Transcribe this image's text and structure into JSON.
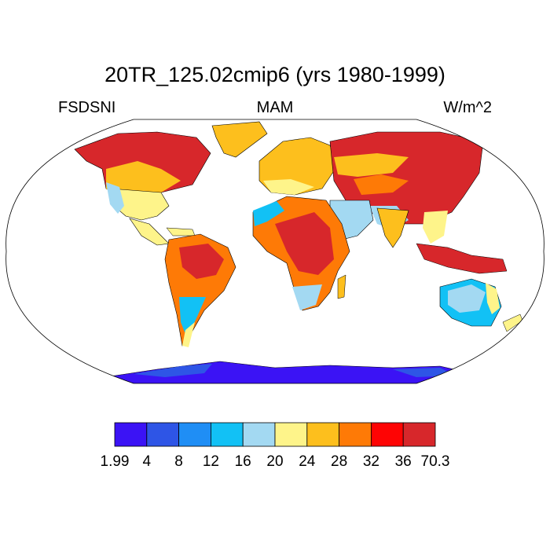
{
  "title": "20TR_125.02cmip6 (yrs 1980-1999)",
  "left_label": "FSDSNI",
  "center_label": "MAM",
  "right_label": "W/m^2",
  "colorbar": {
    "labels": [
      "1.99",
      "4",
      "8",
      "12",
      "16",
      "20",
      "24",
      "28",
      "32",
      "36",
      "70.3"
    ],
    "colors": [
      "#3b13f5",
      "#2e55e6",
      "#1f8ef5",
      "#12c1f5",
      "#a3d9f2",
      "#fef48a",
      "#fdbf1d",
      "#fe7a06",
      "#fe0404",
      "#d7272b"
    ]
  }
}
